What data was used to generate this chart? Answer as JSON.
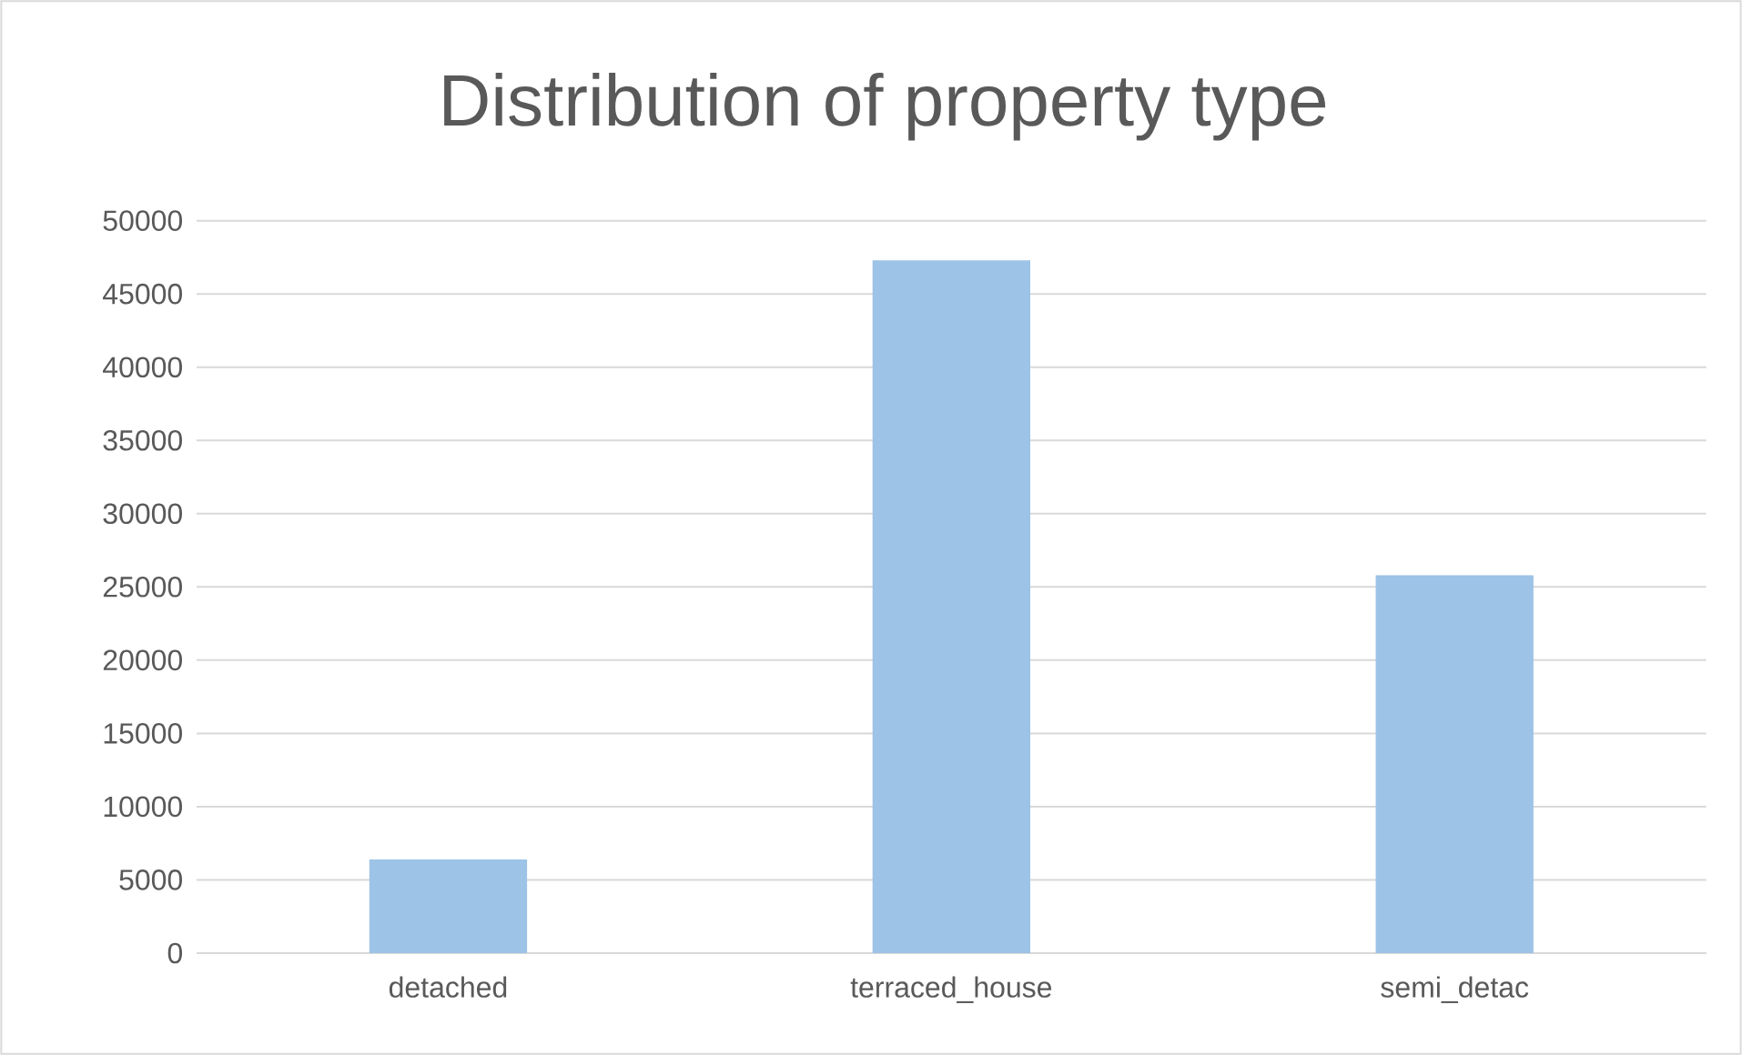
{
  "chart_data": {
    "type": "bar",
    "title": "Distribution of property type",
    "categories": [
      "detached",
      "terraced_house",
      "semi_detac"
    ],
    "values": [
      6400,
      47300,
      25800
    ],
    "color": "#9dc3e6",
    "ylim": [
      0,
      50000
    ],
    "yticks": [
      0,
      5000,
      10000,
      15000,
      20000,
      25000,
      30000,
      35000,
      40000,
      45000,
      50000
    ],
    "grid": "y"
  }
}
